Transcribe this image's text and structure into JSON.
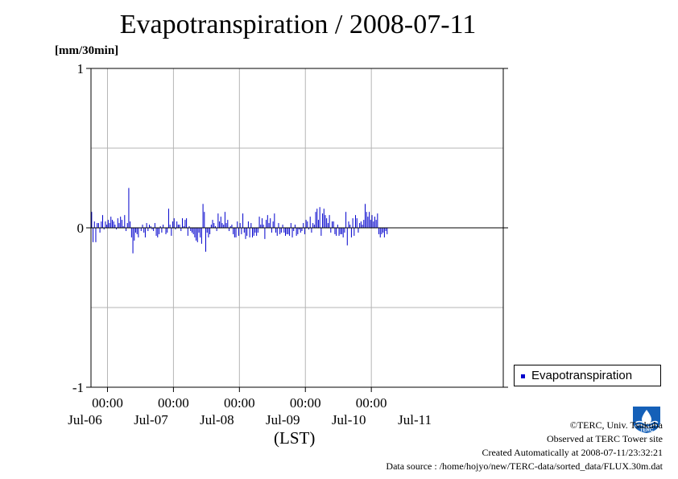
{
  "title": "Evapotranspiration / 2008-07-11",
  "unit_label": "[mm/30min]",
  "x_axis_label": "(LST)",
  "legend": {
    "label": "Evapotranspiration"
  },
  "credits": {
    "copyright": "©TERC, Univ. Tsukuba",
    "site": "Observed at TERC Tower site",
    "created": "Created Automatically at 2008-07-11/23:32:21",
    "source": "Data source : /home/hojyo/new/TERC-data/sorted_data/FLUX.30m.dat"
  },
  "logo": {
    "icon": "terc-logo-icon",
    "text": "TERC"
  },
  "colors": {
    "series": "#0000cc",
    "grid": "#b4b4b4",
    "axis": "#000000"
  },
  "chart_data": {
    "type": "bar",
    "title": "Evapotranspiration / 2008-07-11",
    "ylabel": "[mm/30min]",
    "xlabel": "(LST)",
    "ylim": [
      -1,
      1
    ],
    "y_ticks": [
      "1",
      "0",
      "-1"
    ],
    "x_range": [
      "2008-07-05 18:00",
      "2008-07-11 24:00"
    ],
    "x_tick_times": [
      "2008-07-06 00:00",
      "2008-07-07 00:00",
      "2008-07-08 00:00",
      "2008-07-09 00:00",
      "2008-07-10 00:00"
    ],
    "x_tick_labels": [
      "00:00",
      "00:00",
      "00:00",
      "00:00",
      "00:00"
    ],
    "x_day_labels": [
      "Jul-06",
      "Jul-07",
      "Jul-08",
      "Jul-09",
      "Jul-10",
      "Jul-11"
    ],
    "legend_position": "right",
    "grid": true,
    "series": [
      {
        "name": "Evapotranspiration",
        "start": "2008-07-05 18:00",
        "interval_minutes": 30,
        "values": [
          0.1,
          -0.09,
          0.04,
          -0.09,
          0.03,
          0.03,
          -0.03,
          0.04,
          0.08,
          -0.01,
          0.04,
          0.02,
          0.05,
          0.03,
          0.07,
          0.05,
          0.04,
          0.02,
          -0.01,
          0.06,
          0.03,
          0.07,
          0.05,
          0.01,
          0.08,
          -0.02,
          0.03,
          0.25,
          0.04,
          -0.06,
          -0.16,
          -0.08,
          -0.03,
          -0.04,
          -0.06,
          0.0,
          -0.02,
          0.02,
          -0.03,
          -0.06,
          0.03,
          -0.02,
          0.02,
          0.01,
          -0.01,
          -0.02,
          0.03,
          -0.05,
          -0.06,
          -0.04,
          0.01,
          -0.03,
          0.02,
          0.0,
          -0.04,
          -0.03,
          0.12,
          0.02,
          -0.05,
          0.04,
          0.06,
          -0.01,
          0.04,
          0.02,
          0.02,
          -0.02,
          0.06,
          0.01,
          0.05,
          0.06,
          -0.05,
          0.01,
          -0.02,
          -0.03,
          -0.04,
          -0.06,
          -0.08,
          -0.09,
          -0.03,
          -0.06,
          -0.1,
          0.15,
          0.1,
          -0.15,
          -0.03,
          -0.06,
          -0.04,
          0.02,
          0.05,
          0.03,
          0.01,
          -0.02,
          0.09,
          0.04,
          0.07,
          0.03,
          0.02,
          0.1,
          0.03,
          0.05,
          -0.02,
          0.01,
          0.02,
          -0.04,
          -0.06,
          -0.06,
          0.04,
          -0.05,
          0.03,
          -0.04,
          0.09,
          -0.03,
          -0.07,
          -0.05,
          0.04,
          -0.06,
          0.03,
          -0.06,
          -0.05,
          -0.03,
          -0.05,
          -0.03,
          0.07,
          0.02,
          0.06,
          0.02,
          -0.07,
          0.05,
          0.08,
          0.03,
          0.06,
          -0.03,
          0.04,
          0.09,
          -0.03,
          -0.05,
          0.03,
          -0.04,
          -0.03,
          0.02,
          -0.03,
          -0.05,
          -0.04,
          -0.04,
          -0.05,
          0.03,
          -0.06,
          -0.02,
          0.02,
          -0.05,
          -0.04,
          -0.01,
          -0.03,
          -0.02,
          0.03,
          -0.04,
          0.05,
          0.04,
          -0.01,
          0.07,
          -0.03,
          0.03,
          0.02,
          0.1,
          0.12,
          0.05,
          0.13,
          -0.05,
          0.09,
          0.12,
          0.08,
          0.06,
          0.03,
          0.08,
          -0.03,
          0.04,
          0.04,
          -0.04,
          -0.05,
          0.02,
          -0.05,
          -0.04,
          -0.04,
          -0.06,
          -0.03,
          0.1,
          -0.11,
          0.04,
          0.02,
          -0.06,
          0.06,
          -0.05,
          0.08,
          0.06,
          -0.03,
          0.03,
          0.04,
          0.02,
          0.05,
          0.15,
          0.1,
          0.07,
          0.1,
          0.05,
          0.08,
          0.04,
          0.07,
          0.05,
          0.09,
          -0.04,
          -0.06,
          -0.04,
          -0.03,
          -0.06,
          -0.02,
          -0.04
        ]
      }
    ]
  }
}
